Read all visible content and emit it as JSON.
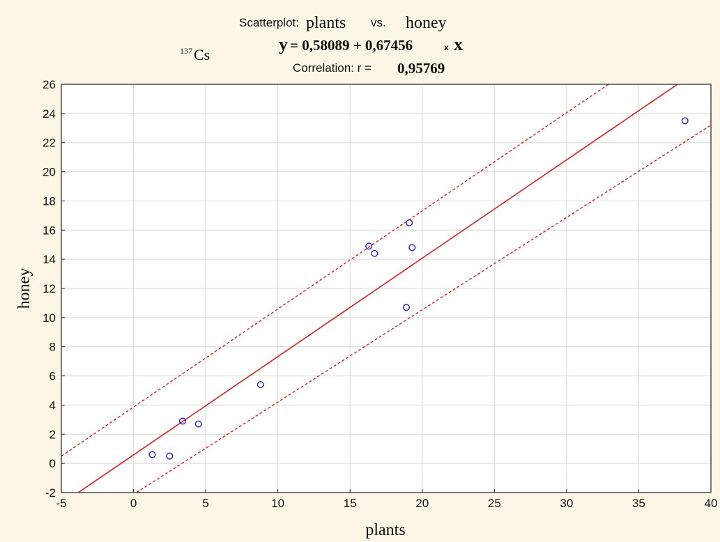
{
  "header": {
    "scatter_prefix": "Scatterplot:",
    "x_name": "plants",
    "vs": "vs.",
    "y_name": "honey",
    "isotope_super": "137",
    "isotope_symbol": "Cs",
    "eq_y": "y",
    "eq_body": "= 0,58089 + 0,67456",
    "eq_times": "x",
    "eq_x": "x",
    "corr_label": "Correlation: r =",
    "corr_value": "0,95769"
  },
  "chart_data": {
    "type": "scatter",
    "xlabel": "plants",
    "ylabel": "honey",
    "xlim": [
      -5,
      40
    ],
    "ylim": [
      -2,
      26
    ],
    "x_ticks": [
      -5,
      0,
      5,
      10,
      15,
      20,
      25,
      30,
      35,
      40
    ],
    "y_ticks": [
      -2,
      0,
      2,
      4,
      6,
      8,
      10,
      12,
      14,
      16,
      18,
      20,
      22,
      24,
      26
    ],
    "grid": true,
    "points": [
      {
        "x": 1.3,
        "y": 0.6
      },
      {
        "x": 2.5,
        "y": 0.5
      },
      {
        "x": 3.4,
        "y": 2.9
      },
      {
        "x": 4.5,
        "y": 2.7
      },
      {
        "x": 8.8,
        "y": 5.4
      },
      {
        "x": 16.3,
        "y": 14.9
      },
      {
        "x": 16.7,
        "y": 14.4
      },
      {
        "x": 18.9,
        "y": 10.7
      },
      {
        "x": 19.1,
        "y": 16.5
      },
      {
        "x": 19.3,
        "y": 14.8
      },
      {
        "x": 38.2,
        "y": 23.5
      }
    ],
    "regression": {
      "intercept": 0.58089,
      "slope": 0.67456
    },
    "confidence_band": {
      "upper": [
        [
          -5,
          0.5
        ],
        [
          32.9,
          26
        ]
      ],
      "lower": [
        [
          0.2,
          -2
        ],
        [
          40,
          23.2
        ]
      ]
    },
    "colors": {
      "points": "#1c1cc8",
      "fit": "#d81e1e",
      "grid": "#d7d7d7",
      "axis": "#222222"
    }
  }
}
